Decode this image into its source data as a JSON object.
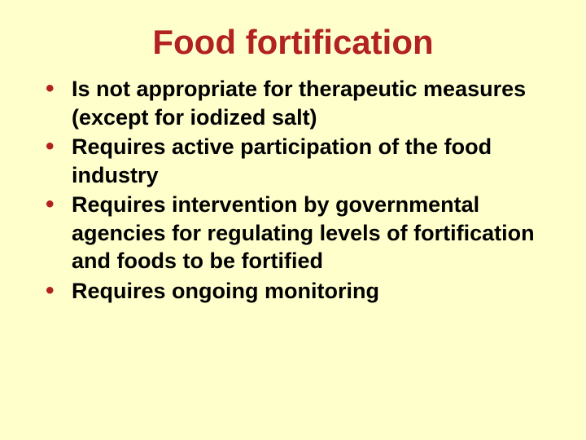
{
  "slide": {
    "background_color": "#ffffcc",
    "title": {
      "text": "Food fortification",
      "color": "#b22222",
      "fontsize": 42,
      "font_weight": "bold",
      "align": "center"
    },
    "bullet_style": {
      "marker_color": "#b22222",
      "text_color": "#000000",
      "fontsize": 27,
      "font_weight": "bold"
    },
    "bullets": [
      " Is not appropriate for therapeutic measures (except for iodized salt)",
      " Requires active participation of the food industry",
      " Requires intervention by governmental agencies for regulating levels of fortification and foods to be fortified",
      " Requires ongoing monitoring"
    ]
  }
}
